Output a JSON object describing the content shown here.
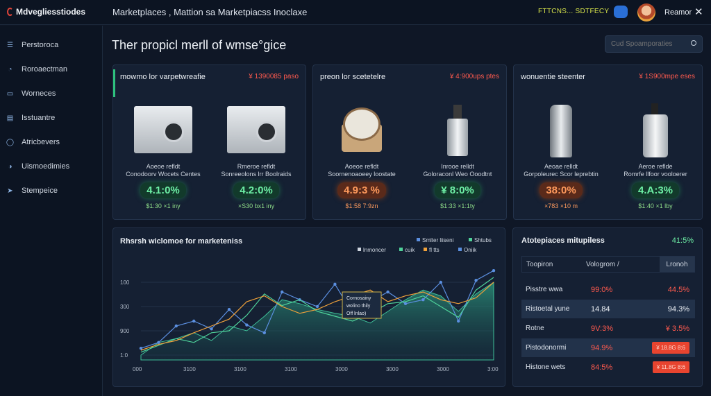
{
  "header": {
    "app_name": "Mdvegliesstiodes",
    "title": "Marketplaces , Mattion sa Marketpiacss Inoclaxe",
    "status_yellow": "FTTCNS... SDTFECY",
    "user_name": "Reamor",
    "close_symbol": "✕"
  },
  "sidebar": {
    "items": [
      {
        "label": "Perstoroca",
        "icon": "menu-icon"
      },
      {
        "label": "Roroaectman",
        "icon": "chart-icon"
      },
      {
        "label": "Worneces",
        "icon": "monitor-icon"
      },
      {
        "label": "Isstuantre",
        "icon": "list-icon"
      },
      {
        "label": "Atricbevers",
        "icon": "clock-icon"
      },
      {
        "label": "Uismoedimies",
        "icon": "gauge-icon"
      },
      {
        "label": "Stempeice",
        "icon": "send-icon"
      }
    ]
  },
  "main": {
    "title": "Ther propicl merll of wmse°gice",
    "search_placeholder": "Cud Spoamporaties"
  },
  "cards": [
    {
      "title": "mowmo lor varpetwreafie",
      "price": "¥ 1390085 paso",
      "products": [
        {
          "label1": "Aoeoe refldt",
          "label2": "Conodoorv Wocets Centes",
          "pct": "4.1:0%",
          "sub": "$1:30 ×1 iny",
          "tone": "green",
          "img": "washer"
        },
        {
          "label1": "Rmeroe refldt",
          "label2": "Sonreeolons lrr Boolraids",
          "pct": "4.2:0%",
          "sub": "×S30 bx1 iny",
          "tone": "green",
          "img": "washer"
        }
      ]
    },
    {
      "title": "preon lor scetetelre",
      "price": "¥ 4:900ups ptes",
      "products": [
        {
          "label1": "Aoeoe refldt",
          "label2": "Soornenoaoeey loostate",
          "pct": "4.9:3 %",
          "sub": "$1:58 7:9zn",
          "tone": "orange",
          "img": "plates"
        },
        {
          "label1": "Inrooe relldt",
          "label2": "Goloraconl Weo Ooodtnt",
          "pct": "¥ 8:0%",
          "sub": "$1:33 ×1:1ty",
          "tone": "green",
          "img": "perfume"
        }
      ]
    },
    {
      "title": "wonuentie steenter",
      "price": "¥ 1S900mpe eses",
      "products": [
        {
          "label1": "Aeoae relldt",
          "label2": "Gorpoleurec Scor leprebtin",
          "pct": "38:0%",
          "sub": "×783 ×10 m",
          "tone": "orange",
          "img": "cylinder"
        },
        {
          "label1": "Aeroe reflde",
          "label2": "Romrfe llfoor vooloerer",
          "pct": "4.A:3%",
          "sub": "$1:40 ×1 lby",
          "tone": "green",
          "img": "soap"
        }
      ]
    }
  ],
  "chart_data": {
    "type": "area",
    "title": "Rhsrsh wiclomoe for marketeniss",
    "legend": [
      "Smlter liiseni",
      "Shtubs",
      "lnmoncer",
      "cuik",
      "fl tts",
      "Oniik"
    ],
    "x_ticks": [
      "000",
      "3100",
      "3100",
      "3100",
      "3000",
      "3000",
      "3000",
      "3:00"
    ],
    "y_ticks": [
      "100",
      "300",
      "900",
      "1:0"
    ],
    "ylim": [
      0,
      100
    ],
    "x": [
      0,
      1,
      2,
      3,
      4,
      5,
      6,
      7,
      8,
      9,
      10,
      11,
      12,
      13,
      14,
      15,
      16,
      17,
      18,
      19,
      20
    ],
    "series": [
      {
        "name": "area",
        "color": "#2b8f78",
        "values": [
          5,
          18,
          22,
          28,
          20,
          35,
          30,
          45,
          62,
          58,
          52,
          48,
          45,
          38,
          50,
          62,
          72,
          66,
          50,
          68,
          80
        ]
      },
      {
        "name": "blue",
        "color": "#5b8fe0",
        "values": [
          12,
          18,
          35,
          40,
          32,
          52,
          36,
          28,
          70,
          62,
          55,
          78,
          48,
          60,
          70,
          58,
          62,
          80,
          40,
          82,
          92
        ]
      },
      {
        "name": "green",
        "color": "#4fd29a",
        "values": [
          8,
          15,
          22,
          18,
          28,
          30,
          46,
          68,
          56,
          62,
          50,
          45,
          40,
          48,
          58,
          60,
          66,
          55,
          44,
          72,
          85
        ]
      },
      {
        "name": "orange",
        "color": "#f2a23a",
        "values": [
          10,
          16,
          20,
          28,
          35,
          42,
          60,
          66,
          55,
          48,
          52,
          60,
          66,
          72,
          60,
          66,
          70,
          62,
          58,
          64,
          80
        ]
      }
    ],
    "tooltip": [
      "Cornosainy",
      "wolino thily",
      "Off lnlao)"
    ]
  },
  "right_panel": {
    "title": "Atotepiaces mitupiless",
    "pct": "41:5%",
    "headers": [
      "Toopiron",
      "Vologrom /",
      "Lronoh"
    ],
    "rows": [
      {
        "c1": "Pisstre wwa",
        "c2": "99:0%",
        "c3": "44.5%",
        "c2t": "red",
        "c3t": "red",
        "alt": false
      },
      {
        "c1": "Ristoetal yune",
        "c2": "14.84",
        "c3": "94.3%",
        "c2t": "white",
        "c3t": "white",
        "alt": true
      },
      {
        "c1": "Rotne",
        "c2": "9V:3%",
        "c3": "¥ 3.5%",
        "c2t": "red",
        "c3t": "red",
        "alt": false
      },
      {
        "c1": "Pistodonormi",
        "c2": "94.9%",
        "c3": "¥ 18.8G 8:6",
        "c2t": "red",
        "c3t": "badge",
        "alt": true
      },
      {
        "c1": "Histone wets",
        "c2": "84:5%",
        "c3": "¥ 11.8G 8:6",
        "c2t": "red",
        "c3t": "badge",
        "alt": false
      }
    ]
  }
}
